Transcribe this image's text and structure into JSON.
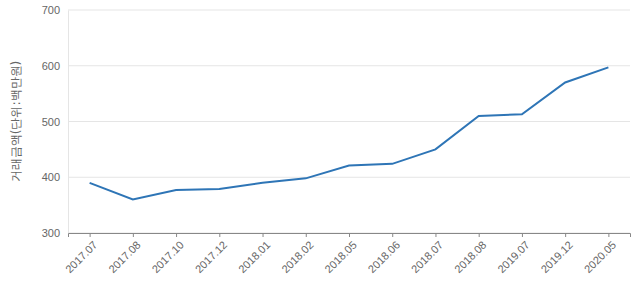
{
  "chart_data": {
    "type": "line",
    "y_label": "거래금액(단위:백만원)",
    "categories": [
      "2017.07",
      "2017.08",
      "2017.10",
      "2017.12",
      "2018.01",
      "2018.02",
      "2018.05",
      "2018.06",
      "2018.07",
      "2018.08",
      "2019.07",
      "2019.12",
      "2020.05"
    ],
    "values": [
      390,
      360,
      377,
      379,
      390,
      398,
      421,
      424,
      450,
      510,
      513,
      570,
      597
    ],
    "color": "#2e75b6",
    "ylim": [
      300,
      700
    ],
    "yticks": [
      300,
      400,
      500,
      600,
      700
    ],
    "grid": true
  }
}
